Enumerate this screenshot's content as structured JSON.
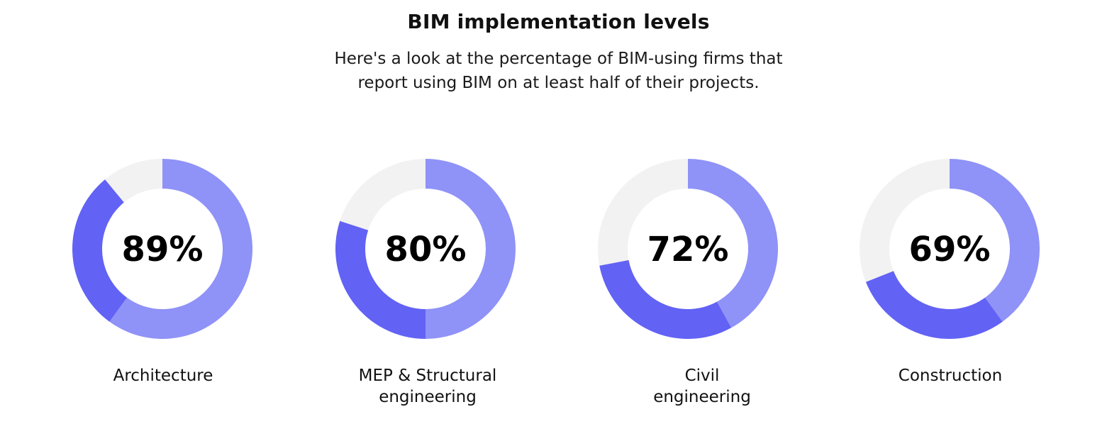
{
  "header": {
    "title": "BIM implementation levels",
    "subtitle_lines": [
      "Here's a look at the percentage of BIM-using firms that",
      "report using BIM on at least half of their projects."
    ]
  },
  "chart_data": {
    "type": "pie",
    "variant": "donut",
    "title": "BIM implementation levels",
    "subtitle": "Here's a look at the percentage of BIM-using firms that report using BIM on at least half of their projects.",
    "unit": "%",
    "colors": {
      "primary": "#8f92f7",
      "secondary": "#6262f5",
      "remainder": "#f2f2f2"
    },
    "items": [
      {
        "label_lines": [
          "Architecture"
        ],
        "value": 89,
        "display": "89%",
        "segments": [
          60,
          29
        ]
      },
      {
        "label_lines": [
          "MEP & Structural",
          "engineering"
        ],
        "value": 80,
        "display": "80%",
        "segments": [
          50,
          30
        ]
      },
      {
        "label_lines": [
          "Civil",
          "engineering"
        ],
        "value": 72,
        "display": "72%",
        "segments": [
          42,
          30
        ]
      },
      {
        "label_lines": [
          "Construction"
        ],
        "value": 69,
        "display": "69%",
        "segments": [
          40,
          29
        ]
      }
    ]
  }
}
